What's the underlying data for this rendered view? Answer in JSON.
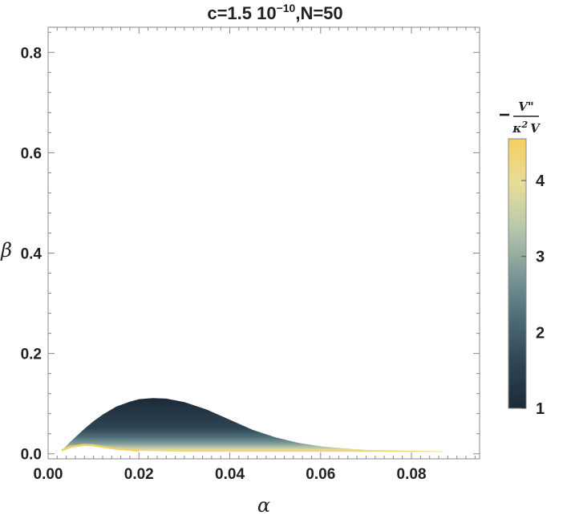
{
  "chart_data": {
    "type": "heatmap",
    "title_main": "c=1.5 10",
    "title_exponent": "−10",
    "title_tail": ",N=50",
    "xlabel": "α",
    "ylabel": "β",
    "xlim": [
      0.0,
      0.095
    ],
    "ylim": [
      -0.01,
      0.85
    ],
    "x_ticks": [
      0.0,
      0.02,
      0.04,
      0.06,
      0.08
    ],
    "x_tick_labels": [
      "0.00",
      "0.02",
      "0.04",
      "0.06",
      "0.08"
    ],
    "y_ticks": [
      0.0,
      0.2,
      0.4,
      0.6,
      0.8
    ],
    "y_tick_labels": [
      "0.0",
      "0.2",
      "0.4",
      "0.6",
      "0.8"
    ],
    "region_upper_boundary": [
      [
        0.003,
        0.007
      ],
      [
        0.005,
        0.025
      ],
      [
        0.008,
        0.05
      ],
      [
        0.01,
        0.065
      ],
      [
        0.012,
        0.078
      ],
      [
        0.015,
        0.094
      ],
      [
        0.018,
        0.104
      ],
      [
        0.02,
        0.109
      ],
      [
        0.023,
        0.111
      ],
      [
        0.026,
        0.11
      ],
      [
        0.03,
        0.103
      ],
      [
        0.035,
        0.088
      ],
      [
        0.04,
        0.068
      ],
      [
        0.045,
        0.048
      ],
      [
        0.05,
        0.033
      ],
      [
        0.055,
        0.022
      ],
      [
        0.06,
        0.015
      ],
      [
        0.065,
        0.011
      ],
      [
        0.07,
        0.008
      ],
      [
        0.075,
        0.007
      ],
      [
        0.08,
        0.006
      ],
      [
        0.087,
        0.005
      ]
    ],
    "region_lower_boundary": [
      [
        0.003,
        0.007
      ],
      [
        0.005,
        0.014
      ],
      [
        0.008,
        0.018
      ],
      [
        0.01,
        0.017
      ],
      [
        0.012,
        0.014
      ],
      [
        0.015,
        0.01
      ],
      [
        0.018,
        0.008
      ],
      [
        0.02,
        0.006
      ],
      [
        0.025,
        0.005
      ],
      [
        0.03,
        0.004
      ],
      [
        0.04,
        0.004
      ],
      [
        0.05,
        0.004
      ],
      [
        0.06,
        0.004
      ],
      [
        0.07,
        0.004
      ],
      [
        0.08,
        0.004
      ],
      [
        0.087,
        0.004
      ]
    ],
    "colorbar": {
      "label_numerator": "V\"",
      "label_denominator_kappa": "κ",
      "label_denominator_exp": "2",
      "label_denominator_v": "V",
      "label_minus": "−",
      "range": [
        1.0,
        4.55
      ],
      "ticks": [
        1,
        2,
        3,
        4
      ],
      "tick_labels": [
        "1",
        "2",
        "3",
        "4"
      ],
      "colors": [
        "#1c2a38",
        "#2d4453",
        "#4d6c77",
        "#7d9a97",
        "#b8c7ad",
        "#e8dd98",
        "#f4cf62"
      ]
    }
  }
}
